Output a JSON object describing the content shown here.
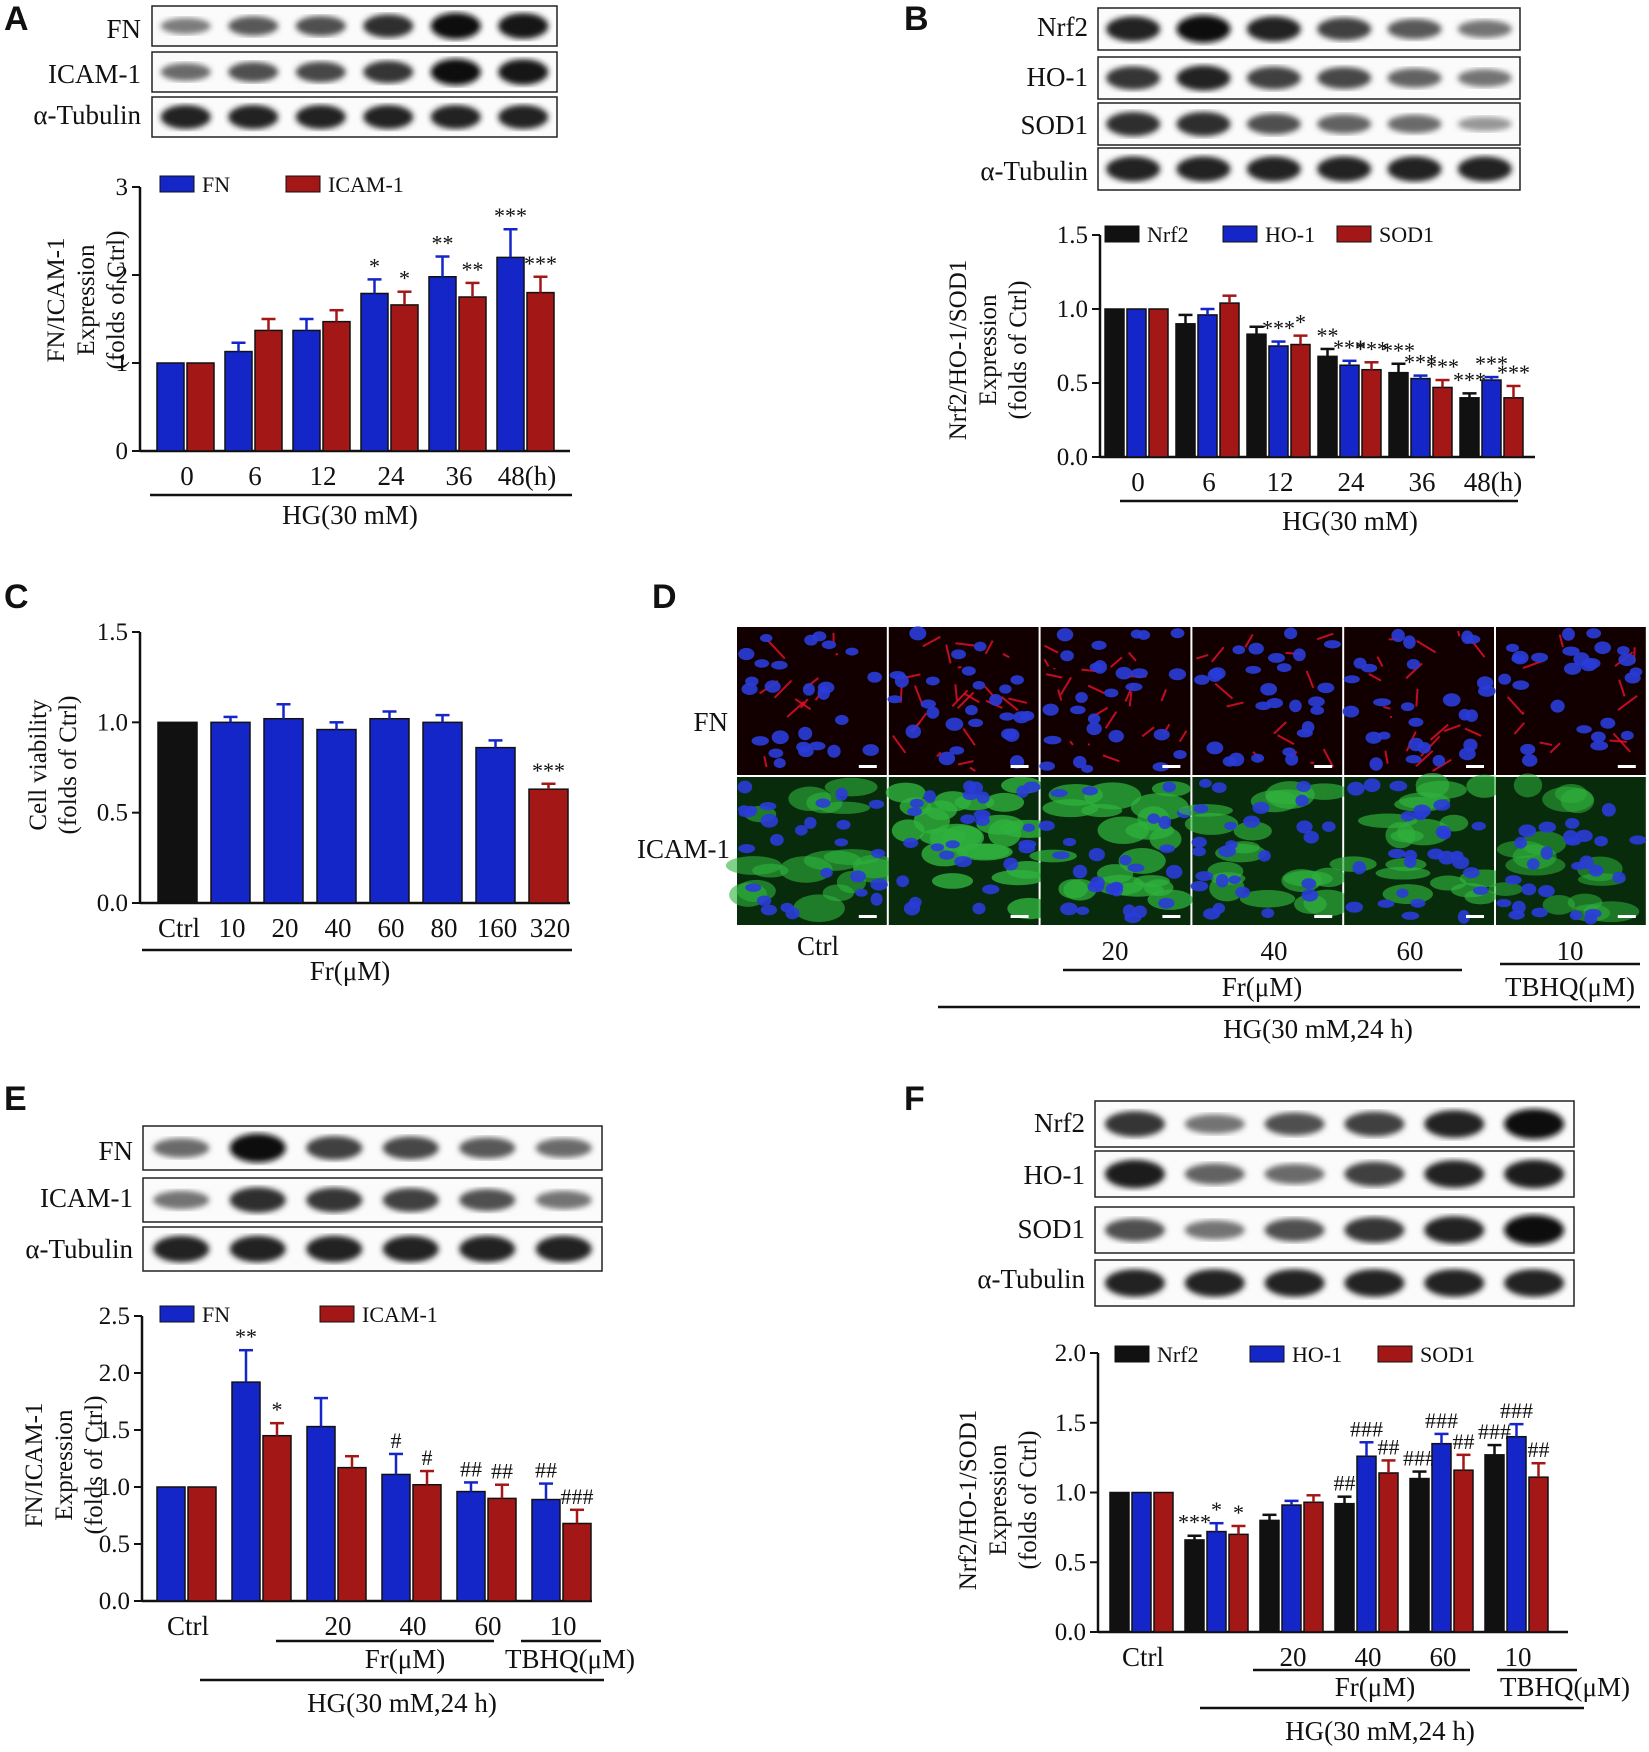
{
  "colors": {
    "black": "#111111",
    "blue": "#1426c8",
    "red": "#a31717"
  },
  "panels": [
    {
      "id": "A",
      "label": "A",
      "blot_labels": [
        "FN",
        "ICAM-1",
        "α-Tubulin"
      ],
      "blot_intensity": [
        [
          0.35,
          0.55,
          0.6,
          0.8,
          1.0,
          0.95
        ],
        [
          0.45,
          0.6,
          0.65,
          0.75,
          1.0,
          0.95
        ],
        [
          0.85,
          0.85,
          0.85,
          0.85,
          0.85,
          0.85
        ]
      ]
    },
    {
      "id": "B",
      "label": "B",
      "blot_labels": [
        "Nrf2",
        "HO-1",
        "SOD1",
        "α-Tubulin"
      ],
      "blot_intensity": [
        [
          0.85,
          1.0,
          0.85,
          0.7,
          0.55,
          0.4
        ],
        [
          0.75,
          0.85,
          0.7,
          0.65,
          0.5,
          0.4
        ],
        [
          0.8,
          0.8,
          0.6,
          0.5,
          0.45,
          0.2
        ],
        [
          0.85,
          0.85,
          0.85,
          0.85,
          0.85,
          0.85
        ]
      ]
    },
    {
      "id": "C",
      "label": "C"
    },
    {
      "id": "D",
      "label": "D",
      "row_labels": [
        "FN",
        "ICAM-1"
      ],
      "col_labels": [
        "Ctrl",
        "20",
        "40",
        "60",
        "10"
      ],
      "group_labels": [
        "Fr(μM)",
        "TBHQ(μM)",
        "HG(30 mM,24 h)"
      ]
    },
    {
      "id": "E",
      "label": "E",
      "blot_labels": [
        "FN",
        "ICAM-1",
        "α-Tubulin"
      ],
      "blot_intensity": [
        [
          0.45,
          1.0,
          0.7,
          0.65,
          0.55,
          0.45
        ],
        [
          0.4,
          0.8,
          0.75,
          0.7,
          0.6,
          0.4
        ],
        [
          0.85,
          0.85,
          0.85,
          0.85,
          0.85,
          0.85
        ]
      ]
    },
    {
      "id": "F",
      "label": "F",
      "blot_labels": [
        "Nrf2",
        "HO-1",
        "SOD1",
        "α-Tubulin"
      ],
      "blot_intensity": [
        [
          0.75,
          0.4,
          0.6,
          0.7,
          0.85,
          1.0
        ],
        [
          0.9,
          0.5,
          0.45,
          0.7,
          0.85,
          0.9
        ],
        [
          0.6,
          0.4,
          0.6,
          0.75,
          0.85,
          1.0
        ],
        [
          0.85,
          0.85,
          0.85,
          0.85,
          0.85,
          0.85
        ]
      ]
    }
  ],
  "chart_data": [
    {
      "panel": "A",
      "type": "bar",
      "ylabel": "FN/ICAM-1 Expression (folds of Ctrl)",
      "ylim": [
        0,
        3
      ],
      "yticks": [
        "0",
        "1",
        "2",
        "3"
      ],
      "categories": [
        "0",
        "6",
        "12",
        "24",
        "36",
        "48(h)"
      ],
      "group_label": "HG(30 mM)",
      "series": [
        {
          "name": "FN",
          "color": "blue",
          "values": [
            1.0,
            1.13,
            1.37,
            1.79,
            1.98,
            2.2
          ],
          "errors": [
            0,
            0.1,
            0.13,
            0.16,
            0.23,
            0.32
          ],
          "marks": [
            "",
            "",
            "",
            "*",
            "**",
            "***"
          ]
        },
        {
          "name": "ICAM-1",
          "color": "red",
          "values": [
            1.0,
            1.37,
            1.47,
            1.66,
            1.75,
            1.8
          ],
          "errors": [
            0,
            0.13,
            0.13,
            0.15,
            0.16,
            0.18
          ],
          "marks": [
            "",
            "",
            "",
            "*",
            "**",
            "***"
          ]
        }
      ]
    },
    {
      "panel": "B",
      "type": "bar",
      "ylabel": "Nrf2/HO-1/SOD1 Expression (folds of Ctrl)",
      "ylim": [
        0,
        1.5
      ],
      "yticks": [
        "0.0",
        "0.5",
        "1.0",
        "1.5"
      ],
      "categories": [
        "0",
        "6",
        "12",
        "24",
        "36",
        "48(h)"
      ],
      "group_label": "HG(30 mM)",
      "series": [
        {
          "name": "Nrf2",
          "color": "black",
          "values": [
            1.0,
            0.9,
            0.83,
            0.68,
            0.57,
            0.4
          ],
          "errors": [
            0,
            0.06,
            0.05,
            0.05,
            0.06,
            0.03
          ],
          "marks": [
            "",
            "",
            "",
            "**",
            "***",
            "***"
          ]
        },
        {
          "name": "HO-1",
          "color": "blue",
          "values": [
            1.0,
            0.96,
            0.75,
            0.62,
            0.53,
            0.52
          ],
          "errors": [
            0,
            0.04,
            0.03,
            0.03,
            0.02,
            0.02
          ],
          "marks": [
            "",
            "",
            "***",
            "***",
            "***",
            "***"
          ]
        },
        {
          "name": "SOD1",
          "color": "red",
          "values": [
            1.0,
            1.04,
            0.76,
            0.59,
            0.47,
            0.4
          ],
          "errors": [
            0,
            0.05,
            0.06,
            0.05,
            0.05,
            0.08
          ],
          "marks": [
            "",
            "",
            "*",
            "***",
            "***",
            "***"
          ]
        }
      ]
    },
    {
      "panel": "C",
      "type": "bar",
      "ylabel": "Cell viability (folds of Ctrl)",
      "ylim": [
        0,
        1.5
      ],
      "yticks": [
        "0.0",
        "0.5",
        "1.0",
        "1.5"
      ],
      "categories": [
        "Ctrl",
        "10",
        "20",
        "40",
        "60",
        "80",
        "160",
        "320"
      ],
      "group_label": "Fr(μM)",
      "series": [
        {
          "name": "",
          "colors": [
            "black",
            "blue",
            "blue",
            "blue",
            "blue",
            "blue",
            "blue",
            "red"
          ],
          "values": [
            1.0,
            1.0,
            1.02,
            0.96,
            1.02,
            1.0,
            0.86,
            0.63
          ],
          "errors": [
            0,
            0.03,
            0.08,
            0.04,
            0.04,
            0.04,
            0.04,
            0.03
          ],
          "marks": [
            "",
            "",
            "",
            "",
            "",
            "",
            "",
            "***"
          ]
        }
      ]
    },
    {
      "panel": "E",
      "type": "bar",
      "ylabel": "FN/ICAM-1 Expression (folds of Ctrl)",
      "ylim": [
        0,
        2.5
      ],
      "yticks": [
        "0.0",
        "0.5",
        "1.0",
        "1.5",
        "2.0",
        "2.5"
      ],
      "categories": [
        "Ctrl",
        "",
        "20",
        "40",
        "60",
        "10"
      ],
      "group_labels": [
        "Fr(μM)",
        "TBHQ(μM)",
        "HG(30 mM,24 h)"
      ],
      "series": [
        {
          "name": "FN",
          "color": "blue",
          "values": [
            1.0,
            1.92,
            1.53,
            1.11,
            0.96,
            0.89
          ],
          "errors": [
            0,
            0.28,
            0.25,
            0.18,
            0.08,
            0.14
          ],
          "marks": [
            "",
            "**",
            "",
            "#",
            "##",
            "##"
          ]
        },
        {
          "name": "ICAM-1",
          "color": "red",
          "values": [
            1.0,
            1.45,
            1.17,
            1.02,
            0.9,
            0.68
          ],
          "errors": [
            0,
            0.11,
            0.1,
            0.12,
            0.12,
            0.12
          ],
          "marks": [
            "",
            "*",
            "",
            "#",
            "##",
            "###"
          ]
        }
      ]
    },
    {
      "panel": "F",
      "type": "bar",
      "ylabel": "Nrf2/HO-1/SOD1 Expression (folds of Ctrl)",
      "ylim": [
        0,
        2.0
      ],
      "yticks": [
        "0.0",
        "0.5",
        "1.0",
        "1.5",
        "2.0"
      ],
      "categories": [
        "Ctrl",
        "",
        "20",
        "40",
        "60",
        "10"
      ],
      "group_labels": [
        "Fr(μM)",
        "TBHQ(μM)",
        "HG(30 mM,24 h)"
      ],
      "series": [
        {
          "name": "Nrf2",
          "color": "black",
          "values": [
            1.0,
            0.66,
            0.8,
            0.92,
            1.1,
            1.27
          ],
          "errors": [
            0,
            0.03,
            0.04,
            0.05,
            0.05,
            0.07
          ],
          "marks": [
            "",
            "***",
            "",
            "##",
            "###",
            "###"
          ]
        },
        {
          "name": "HO-1",
          "color": "blue",
          "values": [
            1.0,
            0.72,
            0.91,
            1.26,
            1.35,
            1.4
          ],
          "errors": [
            0,
            0.06,
            0.03,
            0.1,
            0.07,
            0.09
          ],
          "marks": [
            "",
            "*",
            "",
            "###",
            "###",
            "###"
          ]
        },
        {
          "name": "SOD1",
          "color": "red",
          "values": [
            1.0,
            0.7,
            0.93,
            1.14,
            1.16,
            1.11
          ],
          "errors": [
            0,
            0.06,
            0.05,
            0.09,
            0.11,
            0.1
          ],
          "marks": [
            "",
            "*",
            "",
            "##",
            "##",
            "##"
          ]
        }
      ]
    }
  ]
}
